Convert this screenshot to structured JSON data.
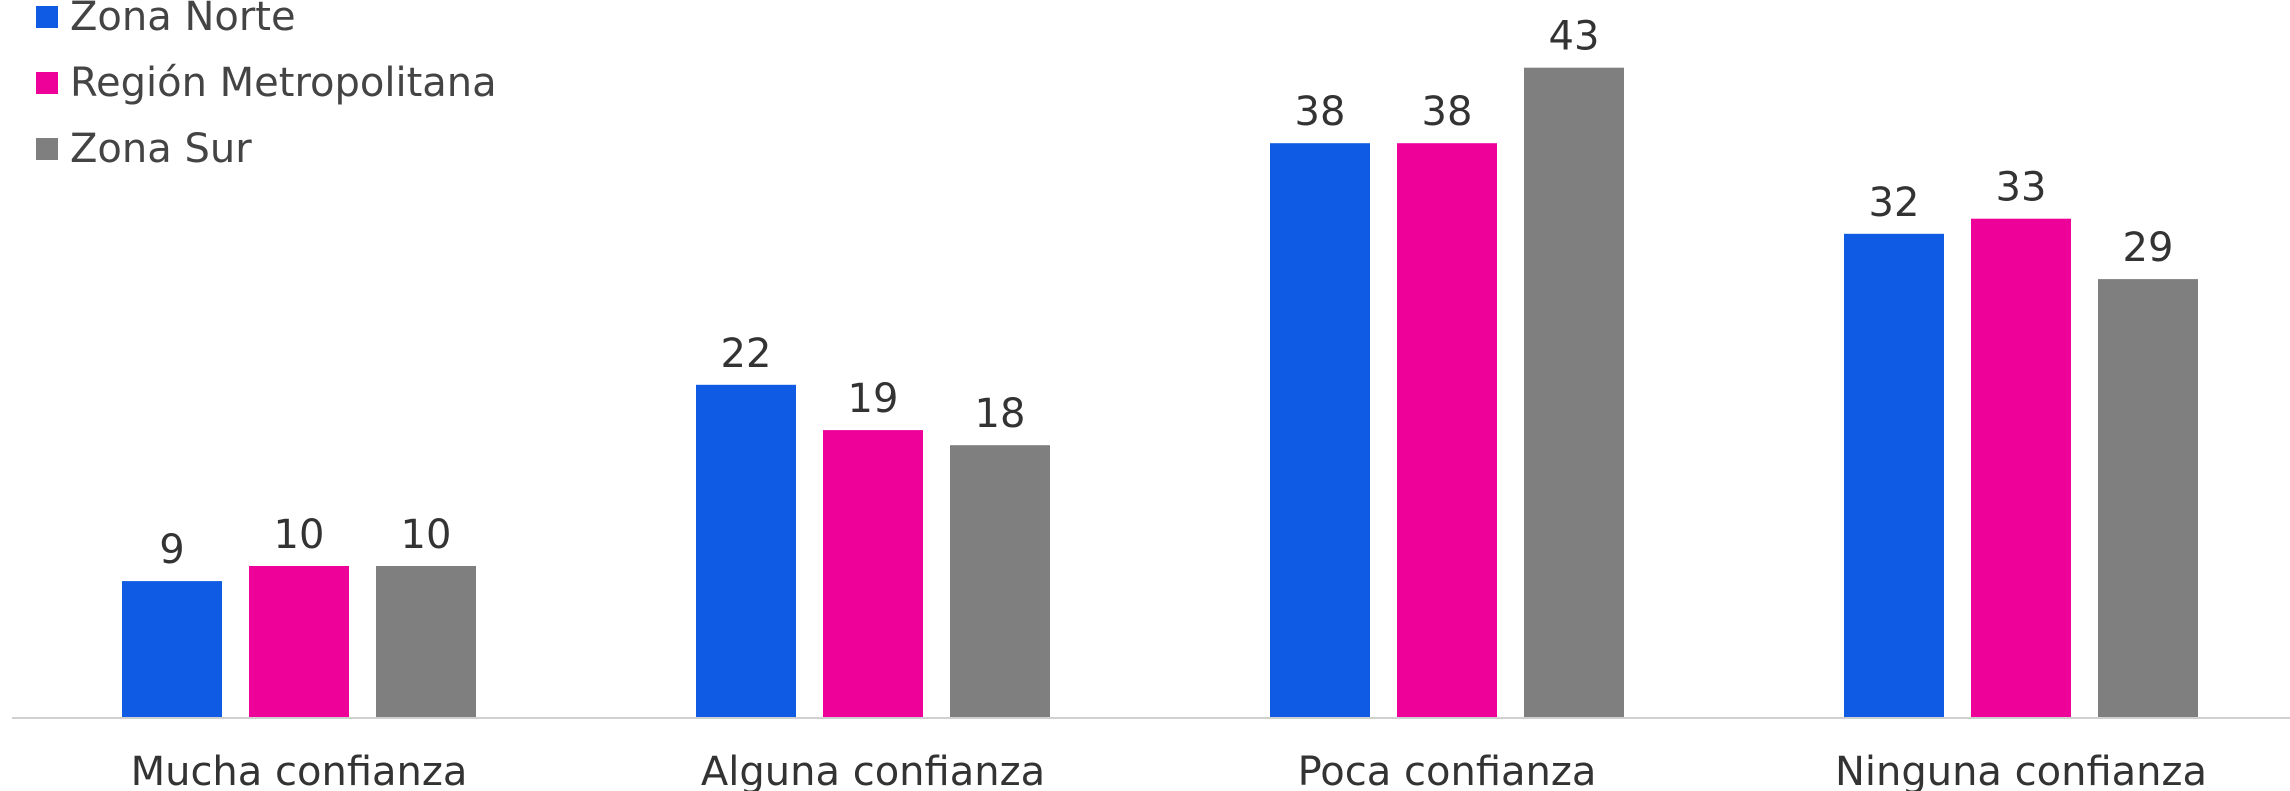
{
  "chart_data": {
    "type": "bar",
    "categories": [
      "Mucha confianza",
      "Alguna confianza",
      "Poca confianza",
      "Ninguna confianza"
    ],
    "series": [
      {
        "name": "Zona Norte",
        "values": [
          9,
          22,
          38,
          32
        ],
        "color": "#0f5be3"
      },
      {
        "name": "Región Metropolitana",
        "values": [
          10,
          19,
          38,
          33
        ],
        "color": "#ee0198"
      },
      {
        "name": "Zona Sur",
        "values": [
          10,
          18,
          43,
          29
        ],
        "color": "#7f7f7f"
      }
    ],
    "ylim": [
      0,
      45
    ],
    "legend_position": "top-left",
    "grid": false,
    "data_labels": true
  }
}
